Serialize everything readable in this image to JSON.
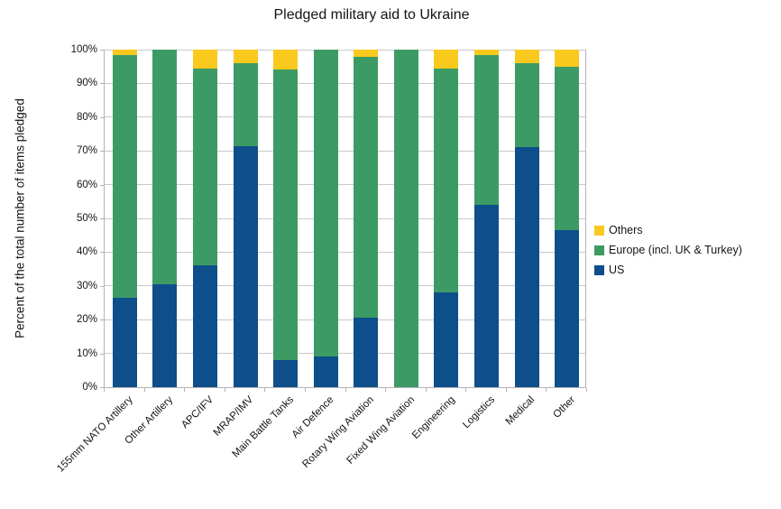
{
  "chart_data": {
    "type": "bar",
    "stacked": true,
    "title": "Pledged military aid to Ukraine",
    "xlabel": "",
    "ylabel": "Percent of the total number of items pledged",
    "ylim": [
      0,
      100
    ],
    "ytick_step": 10,
    "ytick_suffix": "%",
    "grid": true,
    "legend_position": "right",
    "categories": [
      "155mm NATO Artillery",
      "Other Artillery",
      "APC/IFV",
      "MRAP/IMV",
      "Main Battle Tanks",
      "Air Defence",
      "Rotary Wing Aviation",
      "Fixed Wing Aviation",
      "Engineering",
      "Logistics",
      "Medical",
      "Other"
    ],
    "series": [
      {
        "name": "US",
        "color": "#0d4e8b",
        "values": [
          26.5,
          30.5,
          36,
          71.5,
          8,
          9,
          20.5,
          0,
          28,
          54,
          71,
          46.5
        ]
      },
      {
        "name": "Europe (incl. UK & Turkey)",
        "color": "#3c9b64",
        "values": [
          72,
          69.5,
          58.5,
          24.5,
          86,
          91,
          77.5,
          100,
          66.5,
          44.5,
          25,
          48.5
        ]
      },
      {
        "name": "Others",
        "color": "#f9c91d",
        "values": [
          1.5,
          0,
          5.5,
          4,
          6,
          0,
          2,
          0,
          5.5,
          1.5,
          4,
          5
        ]
      }
    ],
    "legend_order": [
      "Others",
      "Europe (incl. UK & Turkey)",
      "US"
    ],
    "colors": {
      "us": "#0d4e8b",
      "europe": "#3c9b64",
      "others": "#f9c91d",
      "gridline": "#c9c9c9",
      "axis": "#b3b3b3"
    }
  }
}
